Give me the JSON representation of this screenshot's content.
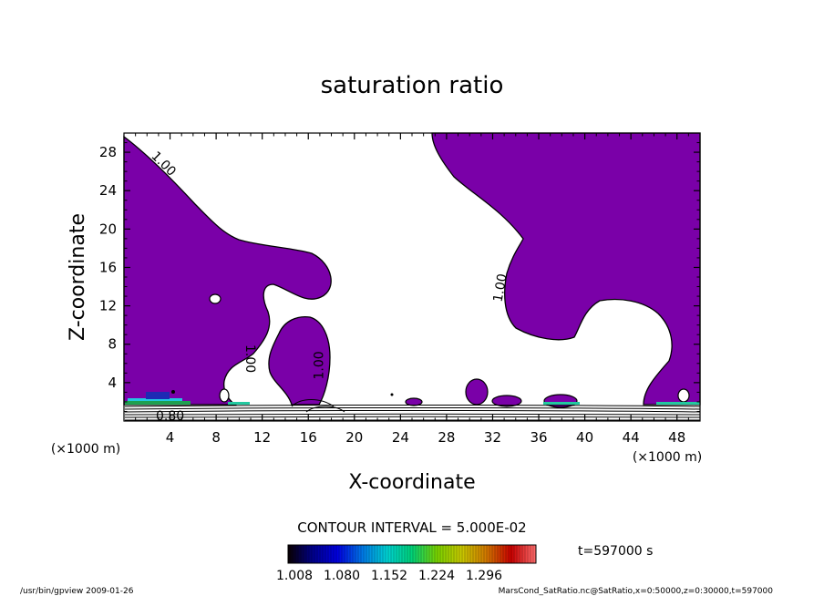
{
  "chart_data": {
    "type": "contour",
    "title": "saturation ratio",
    "xlabel": "X-coordinate",
    "ylabel": "Z-coordinate",
    "x_unit": "(×1000 m)",
    "xlim": [
      0,
      50
    ],
    "ylim": [
      0,
      30
    ],
    "x_ticks": [
      4,
      8,
      12,
      16,
      20,
      24,
      28,
      32,
      36,
      40,
      44,
      48
    ],
    "y_ticks": [
      4,
      8,
      12,
      16,
      20,
      24,
      28
    ],
    "fill_color": "#7a00a8",
    "contour_labels": [
      {
        "text": "1.00",
        "x": 3.2,
        "y": 26.5,
        "angle": 45
      },
      {
        "text": "1.00",
        "x": 10.6,
        "y": 6.5,
        "angle": 90
      },
      {
        "text": "1.00",
        "x": 17.3,
        "y": 5.8,
        "angle": -90
      },
      {
        "text": "1.00",
        "x": 33.0,
        "y": 13.8,
        "angle": -80
      },
      {
        "text": "0.80",
        "x": 4.0,
        "y": 0.1,
        "angle": 0
      }
    ],
    "contour_interval_text": "CONTOUR INTERVAL = 5.000E-02",
    "colorbar": {
      "tick_labels": [
        "1.008",
        "1.080",
        "1.152",
        "1.224",
        "1.296"
      ],
      "colors": [
        "#0a0000",
        "#00008c",
        "#0000e0",
        "#0078e6",
        "#00d2d2",
        "#00d278",
        "#78d200",
        "#c8c800",
        "#d27800",
        "#c80000",
        "#ff6e6e"
      ]
    },
    "time_text": "t=597000 s"
  },
  "footer": {
    "left": "/usr/bin/gpview   2009-01-26",
    "right": "MarsCond_SatRatio.nc@SatRatio,x=0:50000,z=0:30000,t=597000"
  }
}
